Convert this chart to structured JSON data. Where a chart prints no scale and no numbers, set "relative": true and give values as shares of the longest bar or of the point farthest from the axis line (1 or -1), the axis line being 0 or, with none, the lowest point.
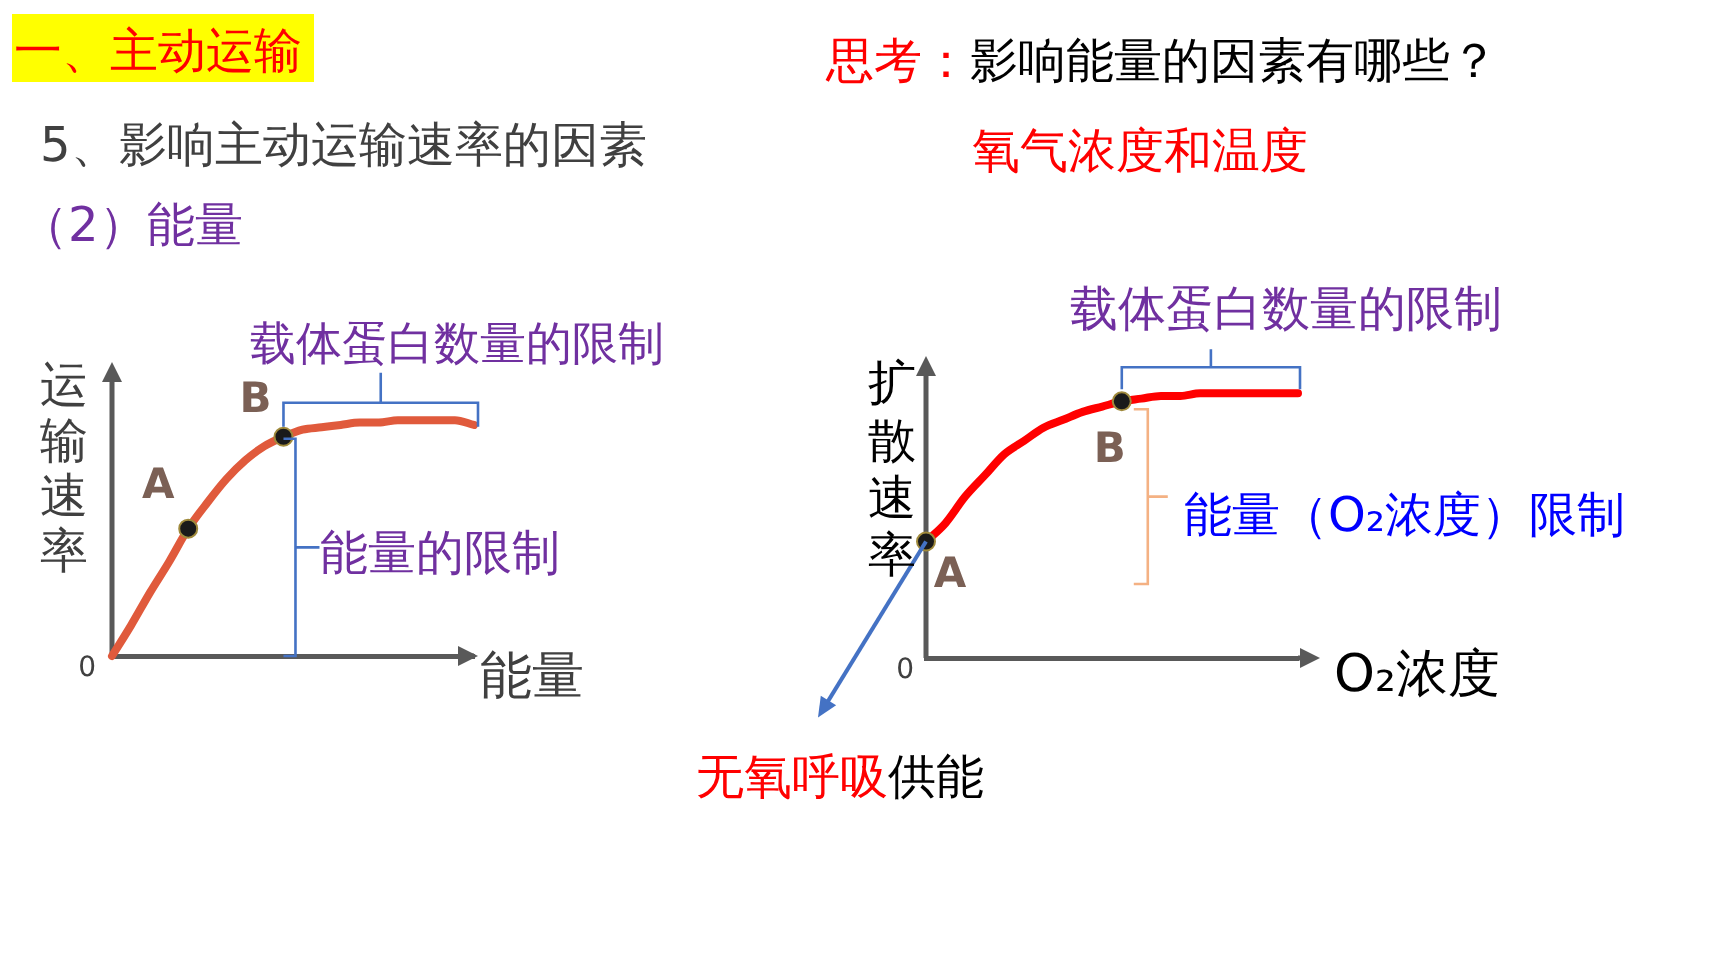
{
  "chart_data": [
    {
      "type": "line",
      "title": "一、主动运输",
      "subtitle": "5、影响主动运输速率的因素",
      "xlabel": "能量",
      "ylabel": "运输速率",
      "relative": true,
      "categories": [
        null,
        null,
        null,
        null,
        null,
        null,
        null,
        null,
        null,
        null,
        null,
        null,
        null,
        null,
        null,
        null,
        null,
        null,
        null,
        null
      ],
      "series": [
        {
          "type": "line",
          "color": "#e05a3c",
          "values": [
            0,
            0.13,
            0.27,
            0.4,
            0.54,
            0.65,
            0.75,
            0.83,
            0.89,
            0.93,
            0.96,
            0.97,
            0.98,
            0.99,
            0.99,
            1,
            1,
            1,
            1,
            0.98
          ]
        }
      ],
      "annotations": [
        "（2）能量",
        "0",
        "A",
        "B",
        "载体蛋白数量的限制",
        "能量的限制"
      ]
    },
    {
      "type": "line",
      "xlabel": "O₂浓度",
      "ylabel": "扩散速率",
      "relative": true,
      "categories": [
        null,
        null,
        null,
        null,
        null,
        null,
        null,
        null,
        null,
        null,
        null,
        null,
        null,
        null,
        null,
        null,
        null,
        null,
        null,
        null
      ],
      "series": [
        {
          "type": "line",
          "color": "#ff0000",
          "values": [
            0.44,
            0.51,
            0.61,
            0.69,
            0.77,
            0.82,
            0.87,
            0.9,
            0.93,
            0.95,
            0.97,
            0.98,
            0.99,
            0.99,
            1,
            1,
            1,
            1,
            1,
            1
          ]
        }
      ],
      "annotations": [
        "思考：",
        "影响能量的因素有哪些？",
        "氧气浓度和温度",
        "0",
        "A",
        "B",
        "载体蛋白数量的限制",
        "能量（O₂浓度）限制",
        "无氧呼吸",
        "供能"
      ]
    }
  ]
}
